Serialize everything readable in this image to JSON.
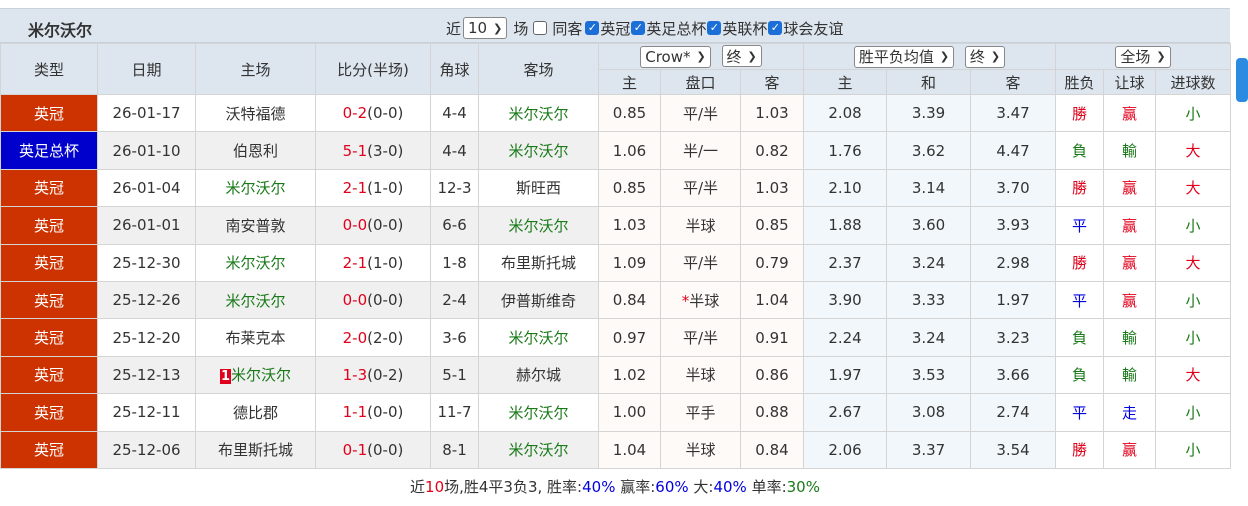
{
  "title": "米尔沃尔",
  "filters": {
    "near_label": "近",
    "count": "10",
    "games_label": "场",
    "same_away_label": "同客",
    "same_away_checked": false,
    "competitions": [
      {
        "label": "英冠",
        "checked": true
      },
      {
        "label": "英足总杯",
        "checked": true
      },
      {
        "label": "英联杯",
        "checked": true
      },
      {
        "label": "球会友谊",
        "checked": true
      }
    ]
  },
  "headers": {
    "type": "类型",
    "date": "日期",
    "home": "主场",
    "score": "比分(半场)",
    "corner": "角球",
    "away": "客场",
    "company_select": "Crow*",
    "company_stage": "终",
    "avg_select": "胜平负均值",
    "avg_stage": "终",
    "scope_select": "全场",
    "sub": [
      "主",
      "盘口",
      "客",
      "主",
      "和",
      "客",
      "胜负",
      "让球",
      "进球数"
    ]
  },
  "colors": {
    "league": "#cc3300",
    "cup": "#0000cc",
    "win": "#e0001b",
    "lose": "#1a7a1a",
    "draw": "#0000e0",
    "team": "#1a7a1a"
  },
  "rows": [
    {
      "type": "英冠",
      "color": "#cc3300",
      "date": "26-01-17",
      "home": "沃特福德",
      "home_hl": false,
      "ft": "0-2",
      "ht": "(0-0)",
      "corner": "4-4",
      "away": "米尔沃尔",
      "away_hl": true,
      "o1": "0.85",
      "line": "平/半",
      "o2": "1.03",
      "a1": "2.08",
      "a2": "3.39",
      "a3": "3.47",
      "r1": "勝",
      "r2": "赢",
      "r3": "小"
    },
    {
      "type": "英足总杯",
      "color": "#0000cc",
      "date": "26-01-10",
      "home": "伯恩利",
      "home_hl": false,
      "ft": "5-1",
      "ht": "(3-0)",
      "corner": "4-4",
      "away": "米尔沃尔",
      "away_hl": true,
      "o1": "1.06",
      "line": "半/一",
      "o2": "0.82",
      "a1": "1.76",
      "a2": "3.62",
      "a3": "4.47",
      "r1": "負",
      "r2": "輸",
      "r3": "大"
    },
    {
      "type": "英冠",
      "color": "#cc3300",
      "date": "26-01-04",
      "home": "米尔沃尔",
      "home_hl": true,
      "ft": "2-1",
      "ht": "(1-0)",
      "corner": "12-3",
      "away": "斯旺西",
      "away_hl": false,
      "o1": "0.85",
      "line": "平/半",
      "o2": "1.03",
      "a1": "2.10",
      "a2": "3.14",
      "a3": "3.70",
      "r1": "勝",
      "r2": "赢",
      "r3": "大"
    },
    {
      "type": "英冠",
      "color": "#cc3300",
      "date": "26-01-01",
      "home": "南安普敦",
      "home_hl": false,
      "ft": "0-0",
      "ht": "(0-0)",
      "corner": "6-6",
      "away": "米尔沃尔",
      "away_hl": true,
      "o1": "1.03",
      "line": "半球",
      "o2": "0.85",
      "a1": "1.88",
      "a2": "3.60",
      "a3": "3.93",
      "r1": "平",
      "r2": "赢",
      "r3": "小"
    },
    {
      "type": "英冠",
      "color": "#cc3300",
      "date": "25-12-30",
      "home": "米尔沃尔",
      "home_hl": true,
      "ft": "2-1",
      "ht": "(1-0)",
      "corner": "1-8",
      "away": "布里斯托城",
      "away_hl": false,
      "o1": "1.09",
      "line": "平/半",
      "o2": "0.79",
      "a1": "2.37",
      "a2": "3.24",
      "a3": "2.98",
      "r1": "勝",
      "r2": "赢",
      "r3": "大"
    },
    {
      "type": "英冠",
      "color": "#cc3300",
      "date": "25-12-26",
      "home": "米尔沃尔",
      "home_hl": true,
      "ft": "0-0",
      "ht": "(0-0)",
      "corner": "2-4",
      "away": "伊普斯维奇",
      "away_hl": false,
      "o1": "0.84",
      "line_star": "*",
      "line": "半球",
      "o2": "1.04",
      "a1": "3.90",
      "a2": "3.33",
      "a3": "1.97",
      "r1": "平",
      "r2": "赢",
      "r3": "小"
    },
    {
      "type": "英冠",
      "color": "#cc3300",
      "date": "25-12-20",
      "home": "布莱克本",
      "home_hl": false,
      "ft": "2-0",
      "ht": "(2-0)",
      "corner": "3-6",
      "away": "米尔沃尔",
      "away_hl": true,
      "o1": "0.97",
      "line": "平/半",
      "o2": "0.91",
      "a1": "2.24",
      "a2": "3.24",
      "a3": "3.23",
      "r1": "負",
      "r2": "輸",
      "r3": "小"
    },
    {
      "type": "英冠",
      "color": "#cc3300",
      "date": "25-12-13",
      "home_badge": "1",
      "home": "米尔沃尔",
      "home_hl": true,
      "ft": "1-3",
      "ht": "(0-2)",
      "corner": "5-1",
      "away": "赫尔城",
      "away_hl": false,
      "o1": "1.02",
      "line": "半球",
      "o2": "0.86",
      "a1": "1.97",
      "a2": "3.53",
      "a3": "3.66",
      "r1": "負",
      "r2": "輸",
      "r3": "大"
    },
    {
      "type": "英冠",
      "color": "#cc3300",
      "date": "25-12-11",
      "home": "德比郡",
      "home_hl": false,
      "ft": "1-1",
      "ht": "(0-0)",
      "corner": "11-7",
      "away": "米尔沃尔",
      "away_hl": true,
      "o1": "1.00",
      "line": "平手",
      "o2": "0.88",
      "a1": "2.67",
      "a2": "3.08",
      "a3": "2.74",
      "r1": "平",
      "r2": "走",
      "r3": "小"
    },
    {
      "type": "英冠",
      "color": "#cc3300",
      "date": "25-12-06",
      "home": "布里斯托城",
      "home_hl": false,
      "ft": "0-1",
      "ht": "(0-0)",
      "corner": "8-1",
      "away": "米尔沃尔",
      "away_hl": true,
      "o1": "1.04",
      "line": "半球",
      "o2": "0.84",
      "a1": "2.06",
      "a2": "3.37",
      "a3": "3.54",
      "r1": "勝",
      "r2": "赢",
      "r3": "小"
    }
  ],
  "summary": {
    "p1": "近",
    "n": "10",
    "p2": "场,胜4平3负3, 胜率:",
    "win_rate": "40%",
    "p3": " 赢率:",
    "cover_rate": "60%",
    "p4": " 大:",
    "over_rate": "40%",
    "p5": " 单率:",
    "odd_rate": "30%"
  }
}
